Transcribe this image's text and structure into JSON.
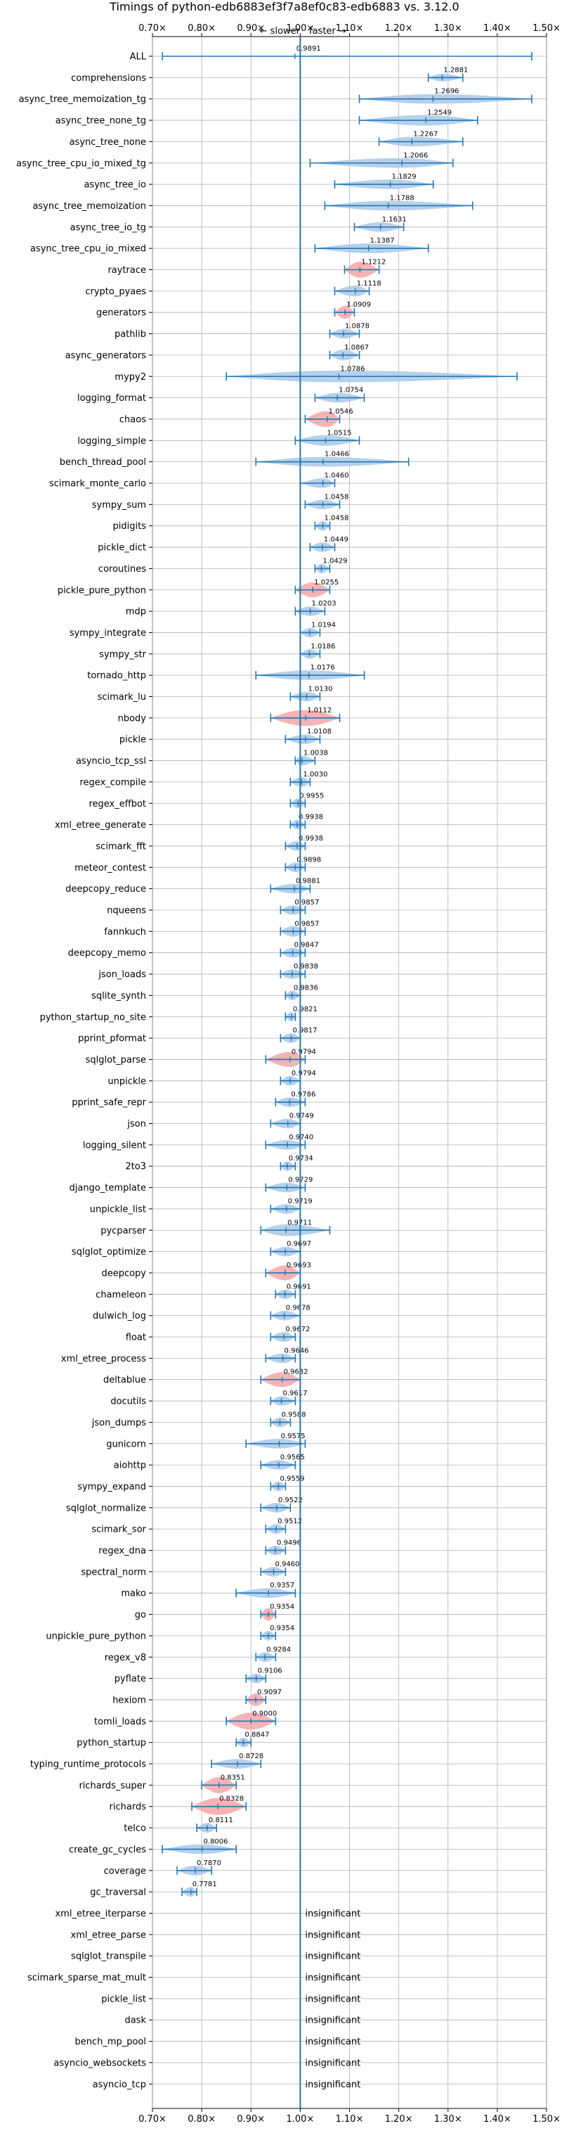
{
  "chart_data": {
    "type": "violin",
    "title": "Timings of python-edb6883ef3f7a8ef0c83-edb6883 vs. 3.12.0",
    "direction_labels": {
      "slower": "← slower",
      "faster": "faster →"
    },
    "xlim": [
      0.7,
      1.5
    ],
    "x_ticks": [
      0.7,
      0.8,
      0.9,
      1.0,
      1.1,
      1.2,
      1.3,
      1.4,
      1.5
    ],
    "x_tick_labels": [
      "0.70×",
      "0.80×",
      "0.90×",
      "1.00×",
      "1.10×",
      "1.20×",
      "1.30×",
      "1.40×",
      "1.50×"
    ],
    "reference_line": 1.0,
    "grid": true,
    "colors": {
      "normal": "#aac8e6",
      "highlight": "#f4a6a8",
      "line": "#1f77b4",
      "grid": "#b0b0b0"
    },
    "insignificant_label": "insignificant",
    "benchmarks": [
      {
        "name": "ALL",
        "value": 0.9891,
        "min": 0.72,
        "max": 1.47,
        "width": 0.025,
        "highlight": false
      },
      {
        "name": "comprehensions",
        "value": 1.2881,
        "min": 1.26,
        "max": 1.33,
        "width": 0.35,
        "highlight": false
      },
      {
        "name": "async_tree_memoization_tg",
        "value": 1.2696,
        "min": 1.12,
        "max": 1.47,
        "width": 0.45,
        "highlight": false
      },
      {
        "name": "async_tree_none_tg",
        "value": 1.2549,
        "min": 1.12,
        "max": 1.36,
        "width": 0.5,
        "highlight": false
      },
      {
        "name": "async_tree_none",
        "value": 1.2267,
        "min": 1.16,
        "max": 1.33,
        "width": 0.45,
        "highlight": false
      },
      {
        "name": "async_tree_cpu_io_mixed_tg",
        "value": 1.2066,
        "min": 1.02,
        "max": 1.31,
        "width": 0.45,
        "highlight": false
      },
      {
        "name": "async_tree_io",
        "value": 1.1829,
        "min": 1.07,
        "max": 1.27,
        "width": 0.45,
        "highlight": false
      },
      {
        "name": "async_tree_memoization",
        "value": 1.1788,
        "min": 1.05,
        "max": 1.35,
        "width": 0.45,
        "highlight": false
      },
      {
        "name": "async_tree_io_tg",
        "value": 1.1631,
        "min": 1.11,
        "max": 1.21,
        "width": 0.45,
        "highlight": false
      },
      {
        "name": "async_tree_cpu_io_mixed",
        "value": 1.1387,
        "min": 1.03,
        "max": 1.26,
        "width": 0.45,
        "highlight": false
      },
      {
        "name": "raytrace",
        "value": 1.1212,
        "min": 1.09,
        "max": 1.16,
        "width": 0.75,
        "highlight": true
      },
      {
        "name": "crypto_pyaes",
        "value": 1.1118,
        "min": 1.07,
        "max": 1.14,
        "width": 0.5,
        "highlight": false
      },
      {
        "name": "generators",
        "value": 1.0909,
        "min": 1.07,
        "max": 1.11,
        "width": 0.6,
        "highlight": true
      },
      {
        "name": "pathlib",
        "value": 1.0878,
        "min": 1.06,
        "max": 1.12,
        "width": 0.45,
        "highlight": false
      },
      {
        "name": "async_generators",
        "value": 1.0867,
        "min": 1.06,
        "max": 1.12,
        "width": 0.5,
        "highlight": false
      },
      {
        "name": "mypy2",
        "value": 1.0786,
        "min": 0.85,
        "max": 1.44,
        "width": 0.55,
        "highlight": false
      },
      {
        "name": "logging_format",
        "value": 1.0754,
        "min": 1.03,
        "max": 1.13,
        "width": 0.45,
        "highlight": false
      },
      {
        "name": "chaos",
        "value": 1.0546,
        "min": 1.01,
        "max": 1.08,
        "width": 0.75,
        "highlight": true
      },
      {
        "name": "logging_simple",
        "value": 1.0515,
        "min": 0.99,
        "max": 1.12,
        "width": 0.5,
        "highlight": false
      },
      {
        "name": "bench_thread_pool",
        "value": 1.0466,
        "min": 0.91,
        "max": 1.22,
        "width": 0.45,
        "highlight": false
      },
      {
        "name": "scimark_monte_carlo",
        "value": 1.046,
        "min": 1.0,
        "max": 1.07,
        "width": 0.45,
        "highlight": false
      },
      {
        "name": "sympy_sum",
        "value": 1.0458,
        "min": 1.01,
        "max": 1.08,
        "width": 0.45,
        "highlight": false
      },
      {
        "name": "pidigits",
        "value": 1.0458,
        "min": 1.03,
        "max": 1.06,
        "width": 0.45,
        "highlight": false
      },
      {
        "name": "pickle_dict",
        "value": 1.0449,
        "min": 1.02,
        "max": 1.07,
        "width": 0.45,
        "highlight": false
      },
      {
        "name": "coroutines",
        "value": 1.0429,
        "min": 1.03,
        "max": 1.06,
        "width": 0.45,
        "highlight": false
      },
      {
        "name": "pickle_pure_python",
        "value": 1.0255,
        "min": 0.99,
        "max": 1.06,
        "width": 0.7,
        "highlight": true
      },
      {
        "name": "mdp",
        "value": 1.0203,
        "min": 0.99,
        "max": 1.05,
        "width": 0.45,
        "highlight": false
      },
      {
        "name": "sympy_integrate",
        "value": 1.0194,
        "min": 1.0,
        "max": 1.04,
        "width": 0.45,
        "highlight": false
      },
      {
        "name": "sympy_str",
        "value": 1.0186,
        "min": 1.0,
        "max": 1.04,
        "width": 0.45,
        "highlight": false
      },
      {
        "name": "tornado_http",
        "value": 1.0176,
        "min": 0.91,
        "max": 1.13,
        "width": 0.45,
        "highlight": false
      },
      {
        "name": "scimark_lu",
        "value": 1.013,
        "min": 0.98,
        "max": 1.04,
        "width": 0.45,
        "highlight": false
      },
      {
        "name": "nbody",
        "value": 1.0112,
        "min": 0.94,
        "max": 1.08,
        "width": 0.75,
        "highlight": true
      },
      {
        "name": "pickle",
        "value": 1.0108,
        "min": 0.97,
        "max": 1.04,
        "width": 0.45,
        "highlight": false
      },
      {
        "name": "asyncio_tcp_ssl",
        "value": 1.0038,
        "min": 0.99,
        "max": 1.03,
        "width": 0.45,
        "highlight": false
      },
      {
        "name": "regex_compile",
        "value": 1.003,
        "min": 0.98,
        "max": 1.02,
        "width": 0.45,
        "highlight": false
      },
      {
        "name": "regex_effbot",
        "value": 0.9955,
        "min": 0.98,
        "max": 1.01,
        "width": 0.45,
        "highlight": false
      },
      {
        "name": "xml_etree_generate",
        "value": 0.9938,
        "min": 0.98,
        "max": 1.01,
        "width": 0.45,
        "highlight": false
      },
      {
        "name": "scimark_fft",
        "value": 0.9938,
        "min": 0.97,
        "max": 1.01,
        "width": 0.45,
        "highlight": false
      },
      {
        "name": "meteor_contest",
        "value": 0.9898,
        "min": 0.97,
        "max": 1.01,
        "width": 0.45,
        "highlight": false
      },
      {
        "name": "deepcopy_reduce",
        "value": 0.9881,
        "min": 0.94,
        "max": 1.02,
        "width": 0.45,
        "highlight": false
      },
      {
        "name": "nqueens",
        "value": 0.9857,
        "min": 0.96,
        "max": 1.01,
        "width": 0.45,
        "highlight": false
      },
      {
        "name": "fannkuch",
        "value": 0.9857,
        "min": 0.96,
        "max": 1.01,
        "width": 0.5,
        "highlight": false
      },
      {
        "name": "deepcopy_memo",
        "value": 0.9847,
        "min": 0.96,
        "max": 1.01,
        "width": 0.45,
        "highlight": false
      },
      {
        "name": "json_loads",
        "value": 0.9838,
        "min": 0.96,
        "max": 1.01,
        "width": 0.45,
        "highlight": false
      },
      {
        "name": "sqlite_synth",
        "value": 0.9836,
        "min": 0.97,
        "max": 1.0,
        "width": 0.45,
        "highlight": false
      },
      {
        "name": "python_startup_no_site",
        "value": 0.9821,
        "min": 0.97,
        "max": 0.99,
        "width": 0.45,
        "highlight": false
      },
      {
        "name": "pprint_pformat",
        "value": 0.9817,
        "min": 0.96,
        "max": 1.0,
        "width": 0.45,
        "highlight": false
      },
      {
        "name": "sqlglot_parse",
        "value": 0.9794,
        "min": 0.93,
        "max": 1.01,
        "width": 0.7,
        "highlight": true
      },
      {
        "name": "unpickle",
        "value": 0.9794,
        "min": 0.96,
        "max": 1.0,
        "width": 0.45,
        "highlight": false
      },
      {
        "name": "pprint_safe_repr",
        "value": 0.9786,
        "min": 0.95,
        "max": 1.01,
        "width": 0.45,
        "highlight": false
      },
      {
        "name": "json",
        "value": 0.9749,
        "min": 0.94,
        "max": 1.0,
        "width": 0.45,
        "highlight": false
      },
      {
        "name": "logging_silent",
        "value": 0.974,
        "min": 0.93,
        "max": 1.01,
        "width": 0.45,
        "highlight": false
      },
      {
        "name": "2to3",
        "value": 0.9734,
        "min": 0.96,
        "max": 0.99,
        "width": 0.45,
        "highlight": false
      },
      {
        "name": "django_template",
        "value": 0.9729,
        "min": 0.93,
        "max": 1.01,
        "width": 0.45,
        "highlight": false
      },
      {
        "name": "unpickle_list",
        "value": 0.9719,
        "min": 0.94,
        "max": 1.0,
        "width": 0.45,
        "highlight": false
      },
      {
        "name": "pycparser",
        "value": 0.9711,
        "min": 0.92,
        "max": 1.06,
        "width": 0.55,
        "highlight": false
      },
      {
        "name": "sqlglot_optimize",
        "value": 0.9697,
        "min": 0.94,
        "max": 1.0,
        "width": 0.45,
        "highlight": false
      },
      {
        "name": "deepcopy",
        "value": 0.9693,
        "min": 0.93,
        "max": 1.0,
        "width": 0.7,
        "highlight": true
      },
      {
        "name": "chameleon",
        "value": 0.9691,
        "min": 0.95,
        "max": 0.99,
        "width": 0.45,
        "highlight": false
      },
      {
        "name": "dulwich_log",
        "value": 0.9678,
        "min": 0.94,
        "max": 1.0,
        "width": 0.45,
        "highlight": false
      },
      {
        "name": "float",
        "value": 0.9672,
        "min": 0.94,
        "max": 0.99,
        "width": 0.45,
        "highlight": false
      },
      {
        "name": "xml_etree_process",
        "value": 0.9646,
        "min": 0.93,
        "max": 0.99,
        "width": 0.45,
        "highlight": false
      },
      {
        "name": "deltablue",
        "value": 0.9632,
        "min": 0.92,
        "max": 1.0,
        "width": 0.7,
        "highlight": true
      },
      {
        "name": "docutils",
        "value": 0.9617,
        "min": 0.94,
        "max": 0.99,
        "width": 0.45,
        "highlight": false
      },
      {
        "name": "json_dumps",
        "value": 0.9588,
        "min": 0.94,
        "max": 0.98,
        "width": 0.45,
        "highlight": false
      },
      {
        "name": "gunicorn",
        "value": 0.9575,
        "min": 0.89,
        "max": 1.01,
        "width": 0.45,
        "highlight": false
      },
      {
        "name": "aiohttp",
        "value": 0.9565,
        "min": 0.92,
        "max": 0.99,
        "width": 0.45,
        "highlight": false
      },
      {
        "name": "sympy_expand",
        "value": 0.9559,
        "min": 0.94,
        "max": 0.97,
        "width": 0.45,
        "highlight": false
      },
      {
        "name": "sqlglot_normalize",
        "value": 0.9522,
        "min": 0.92,
        "max": 0.98,
        "width": 0.45,
        "highlight": false
      },
      {
        "name": "scimark_sor",
        "value": 0.9512,
        "min": 0.93,
        "max": 0.97,
        "width": 0.45,
        "highlight": false
      },
      {
        "name": "regex_dna",
        "value": 0.9496,
        "min": 0.93,
        "max": 0.97,
        "width": 0.45,
        "highlight": false
      },
      {
        "name": "spectral_norm",
        "value": 0.946,
        "min": 0.92,
        "max": 0.97,
        "width": 0.45,
        "highlight": false
      },
      {
        "name": "mako",
        "value": 0.9357,
        "min": 0.87,
        "max": 0.99,
        "width": 0.45,
        "highlight": false
      },
      {
        "name": "go",
        "value": 0.9354,
        "min": 0.92,
        "max": 0.95,
        "width": 0.6,
        "highlight": true
      },
      {
        "name": "unpickle_pure_python",
        "value": 0.9354,
        "min": 0.92,
        "max": 0.95,
        "width": 0.45,
        "highlight": false
      },
      {
        "name": "regex_v8",
        "value": 0.9284,
        "min": 0.91,
        "max": 0.95,
        "width": 0.45,
        "highlight": false
      },
      {
        "name": "pyflate",
        "value": 0.9106,
        "min": 0.89,
        "max": 0.93,
        "width": 0.45,
        "highlight": false
      },
      {
        "name": "hexiom",
        "value": 0.9097,
        "min": 0.89,
        "max": 0.93,
        "width": 0.6,
        "highlight": true
      },
      {
        "name": "tomli_loads",
        "value": 0.9,
        "min": 0.85,
        "max": 0.95,
        "width": 0.8,
        "highlight": true
      },
      {
        "name": "python_startup",
        "value": 0.8847,
        "min": 0.87,
        "max": 0.9,
        "width": 0.45,
        "highlight": false
      },
      {
        "name": "typing_runtime_protocols",
        "value": 0.8728,
        "min": 0.82,
        "max": 0.92,
        "width": 0.45,
        "highlight": false
      },
      {
        "name": "richards_super",
        "value": 0.8351,
        "min": 0.8,
        "max": 0.87,
        "width": 0.75,
        "highlight": true
      },
      {
        "name": "richards",
        "value": 0.8328,
        "min": 0.78,
        "max": 0.89,
        "width": 0.8,
        "highlight": true
      },
      {
        "name": "telco",
        "value": 0.8111,
        "min": 0.79,
        "max": 0.83,
        "width": 0.45,
        "highlight": false
      },
      {
        "name": "create_gc_cycles",
        "value": 0.8006,
        "min": 0.72,
        "max": 0.87,
        "width": 0.45,
        "highlight": false
      },
      {
        "name": "coverage",
        "value": 0.787,
        "min": 0.75,
        "max": 0.82,
        "width": 0.45,
        "highlight": false
      },
      {
        "name": "gc_traversal",
        "value": 0.7781,
        "min": 0.76,
        "max": 0.79,
        "width": 0.45,
        "highlight": false
      },
      {
        "name": "xml_etree_iterparse",
        "insignificant": true
      },
      {
        "name": "xml_etree_parse",
        "insignificant": true
      },
      {
        "name": "sqlglot_transpile",
        "insignificant": true
      },
      {
        "name": "scimark_sparse_mat_mult",
        "insignificant": true
      },
      {
        "name": "pickle_list",
        "insignificant": true
      },
      {
        "name": "dask",
        "insignificant": true
      },
      {
        "name": "bench_mp_pool",
        "insignificant": true
      },
      {
        "name": "asyncio_websockets",
        "insignificant": true
      },
      {
        "name": "asyncio_tcp",
        "insignificant": true
      }
    ]
  }
}
